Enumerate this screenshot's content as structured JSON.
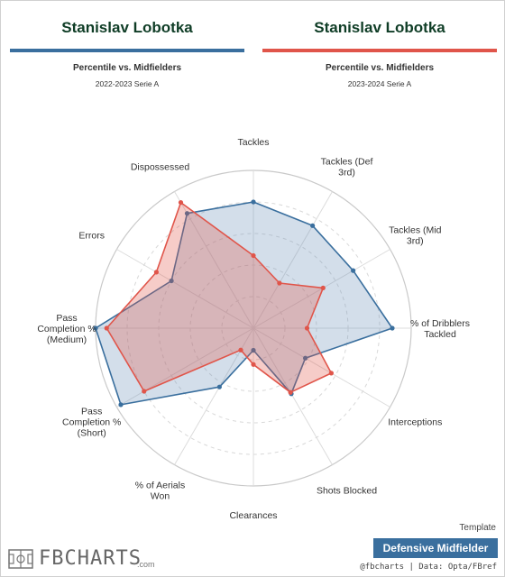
{
  "header": {
    "left": {
      "player": "Stanislav Lobotka",
      "subtitle": "Percentile vs. Midfielders",
      "season": "2022-2023 Serie A",
      "color": "#3a6f9e"
    },
    "right": {
      "player": "Stanislav Lobotka",
      "subtitle": "Percentile vs. Midfielders",
      "season": "2023-2024 Serie A",
      "color": "#e0554a"
    }
  },
  "chart_data": {
    "type": "radar",
    "range": [
      0,
      100
    ],
    "rings": [
      20,
      40,
      60,
      80,
      100
    ],
    "grid": true,
    "categories": [
      "Tackles",
      "Tackles (Def 3rd)",
      "Tackles (Mid 3rd)",
      "% of Dribblers Tackled",
      "Interceptions",
      "Shots Blocked",
      "Clearances",
      "% of Aerials Won",
      "Pass Completion % (Short)",
      "Pass Completion % (Medium)",
      "Errors",
      "Dispossessed"
    ],
    "label_lines": [
      [
        "Tackles"
      ],
      [
        "Tackles (Def",
        "3rd)"
      ],
      [
        "Tackles (Mid",
        "3rd)"
      ],
      [
        "% of Dribblers",
        "Tackled"
      ],
      [
        "Interceptions"
      ],
      [
        "Shots Blocked"
      ],
      [
        "Clearances"
      ],
      [
        "% of Aerials",
        "Won"
      ],
      [
        "Pass",
        "Completion %",
        "(Short)"
      ],
      [
        "Pass",
        "Completion %",
        "(Medium)"
      ],
      [
        "Errors"
      ],
      [
        "Dispossessed"
      ]
    ],
    "series": [
      {
        "season": "2022-2023 Serie A",
        "color": "#3a6f9e",
        "fill": "rgba(110,145,185,0.30)",
        "values": [
          80,
          75,
          73,
          88,
          38,
          48,
          14,
          43,
          97,
          100,
          60,
          84
        ]
      },
      {
        "season": "2023-2024 Serie A",
        "color": "#e0554a",
        "fill": "rgba(224,85,74,0.30)",
        "values": [
          46,
          33,
          51,
          34,
          57,
          47,
          23,
          16,
          80,
          93,
          71,
          92
        ]
      }
    ]
  },
  "footer": {
    "template_label": "Template",
    "role": "Defensive Midfielder",
    "credit": "@fbcharts | Data: Opta/FBref",
    "logo_text": "FBCHARTS",
    "logo_suffix": ".com",
    "logo_icon": "football-pitch-icon"
  }
}
